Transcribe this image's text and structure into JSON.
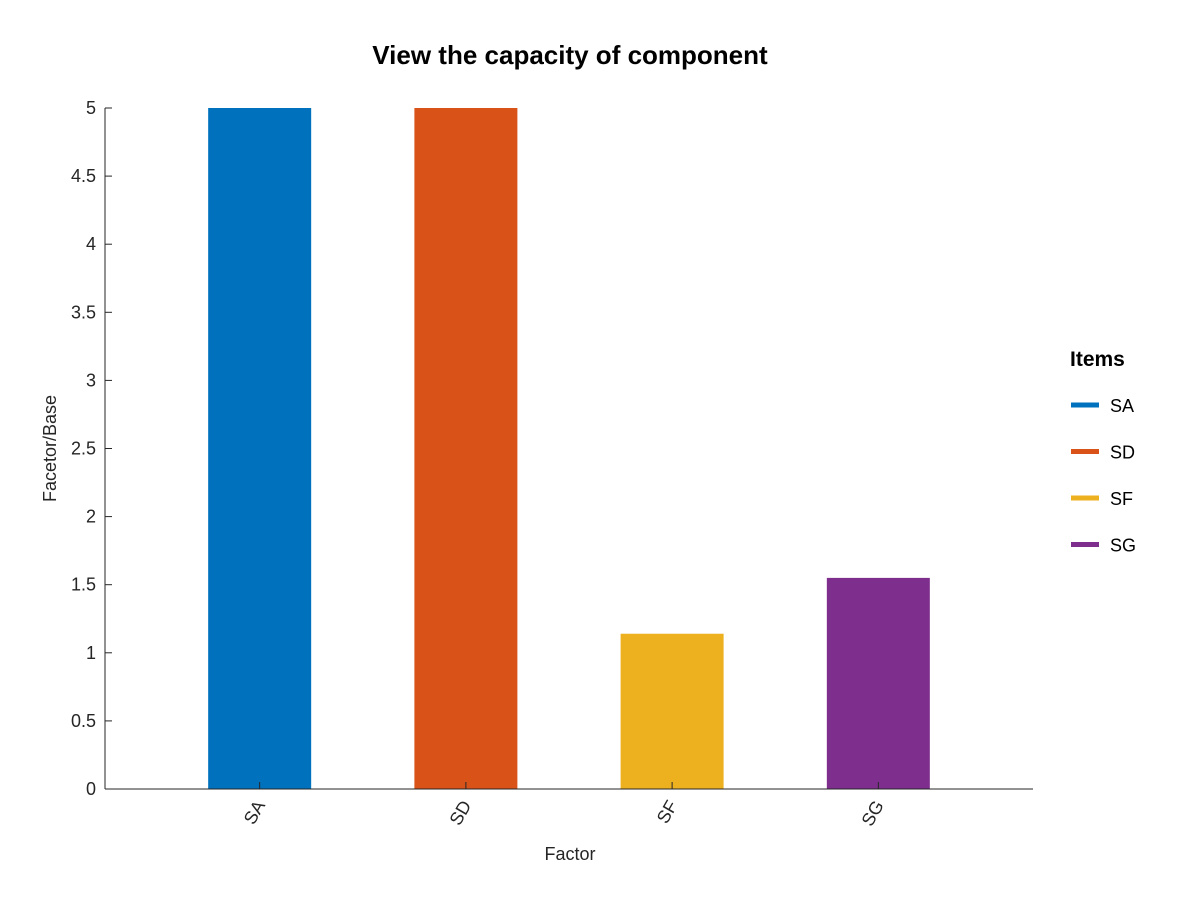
{
  "chart_data": {
    "type": "bar",
    "title": "View the capacity of component",
    "xlabel": "Factor",
    "ylabel": "Facetor/Base",
    "categories": [
      "SA",
      "SD",
      "SF",
      "SG"
    ],
    "values": [
      5,
      5,
      1.14,
      1.55
    ],
    "colors": [
      "#0072BD",
      "#D95319",
      "#EDB120",
      "#7E2F8E"
    ],
    "ylim": [
      0,
      5
    ],
    "yticks": [
      "0",
      "0.5",
      "1",
      "1.5",
      "2",
      "2.5",
      "3",
      "3.5",
      "4",
      "4.5",
      "5"
    ],
    "grid": false,
    "legend": {
      "title": "Items",
      "placement": "right",
      "entries": [
        "SA",
        "SD",
        "SF",
        "SG"
      ]
    }
  }
}
